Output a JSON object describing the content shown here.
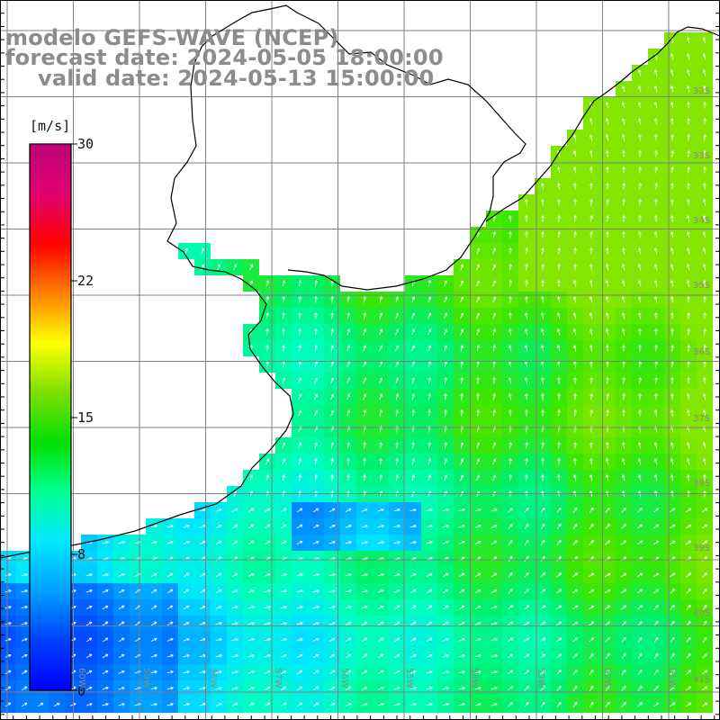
{
  "title": {
    "model": "modelo GEFS-WAVE (NCEP)",
    "forecast": "forecast date: 2024-05-05 18:00:00",
    "valid": "valid date: 2024-05-13 15:00:00"
  },
  "colorbar": {
    "unit": "[m/s]",
    "ticks": [
      "30",
      "22",
      "15",
      "8",
      "0"
    ],
    "colors": [
      "#0000ff",
      "#0040ff",
      "#00a0ff",
      "#00e8ff",
      "#00ff90",
      "#00e000",
      "#7fdf00",
      "#ffff00",
      "#ff8000",
      "#ff0000",
      "#e00070",
      "#c0007a"
    ]
  },
  "lat_labels": [
    "32S",
    "33S",
    "34S",
    "35S",
    "36S",
    "37S",
    "38S",
    "39S",
    "40S",
    "41S"
  ],
  "lon_labels": [
    "60W",
    "59W",
    "58W",
    "57W",
    "56W",
    "55W",
    "54W",
    "53W",
    "52W",
    "51W"
  ],
  "colors": {
    "coast": "#000000",
    "grid": "#808080",
    "arrow": "#ffffff",
    "title": "#8c8c8c"
  }
}
